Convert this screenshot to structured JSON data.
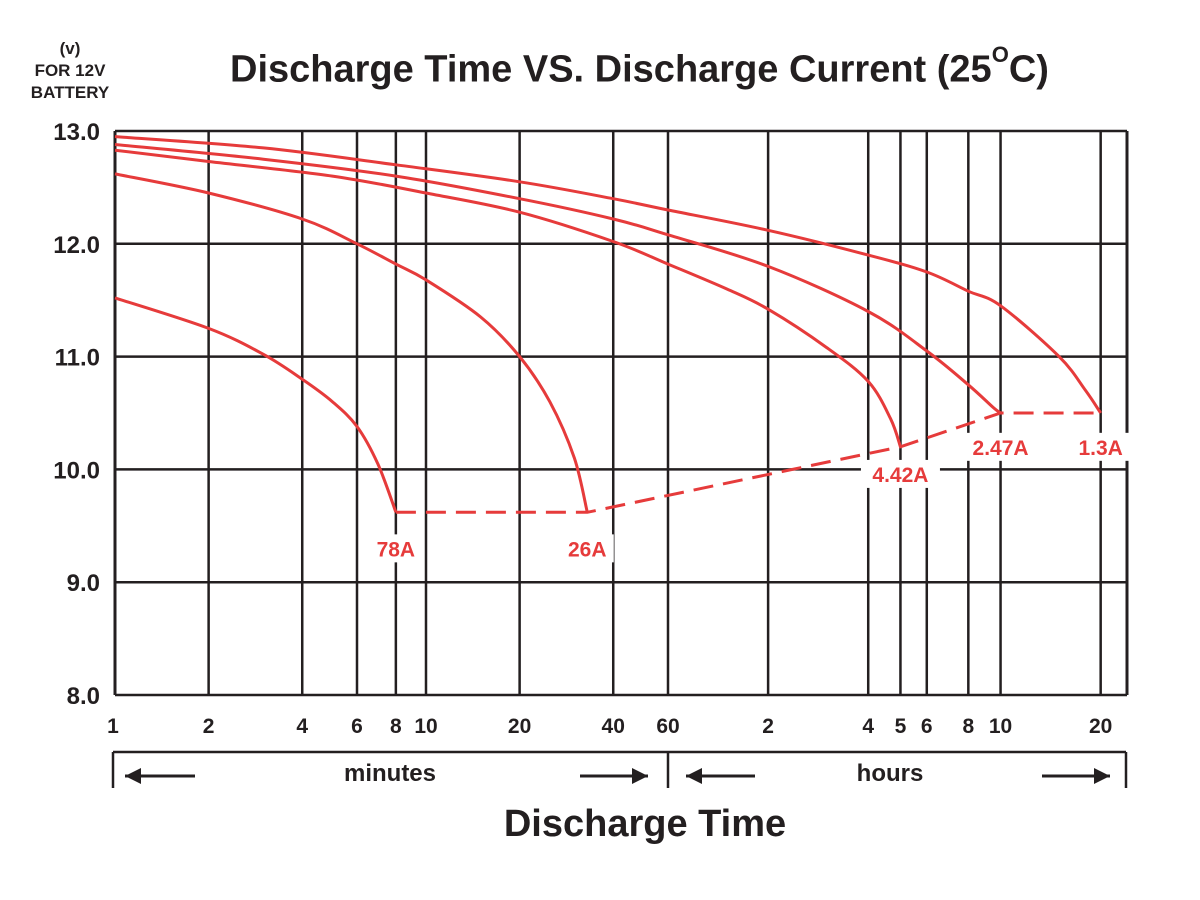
{
  "chart_data": {
    "type": "line",
    "title": "Discharge Time VS. Discharge Current (25",
    "title_sup": "O",
    "title_end": "C)",
    "ylabel_lines": [
      "(v)",
      "FOR 12V",
      "BATTERY"
    ],
    "xlabel": "Discharge Time",
    "x_segments": [
      {
        "label": "minutes",
        "range_min": [
          1,
          60
        ]
      },
      {
        "label": "hours",
        "range_min": [
          60,
          1200
        ]
      }
    ],
    "x_scale": "log",
    "x_ticks_min": [
      1,
      2,
      4,
      6,
      8,
      10,
      20,
      40,
      60,
      120,
      240,
      300,
      360,
      480,
      600,
      1200
    ],
    "x_tick_labels": [
      "1",
      "2",
      "4",
      "6",
      "8",
      "10",
      "20",
      "40",
      "60",
      "2",
      "4",
      "5",
      "6",
      "8",
      "10",
      "20"
    ],
    "y_ticks": [
      "8.0",
      "9.0",
      "10.0",
      "11.0",
      "12.0",
      "13.0"
    ],
    "ylim": [
      8.0,
      13.0
    ],
    "xlim_min": [
      1,
      1440
    ],
    "grid": true,
    "colors": {
      "series": "#e63b3b",
      "grid": "#231f20",
      "text": "#231f20"
    },
    "series": [
      {
        "name": "78A",
        "points": [
          [
            1,
            11.52
          ],
          [
            2,
            11.25
          ],
          [
            3,
            11.02
          ],
          [
            4,
            10.8
          ],
          [
            5,
            10.6
          ],
          [
            6,
            10.38
          ],
          [
            7,
            10.05
          ],
          [
            8,
            9.62
          ]
        ]
      },
      {
        "name": "26A",
        "points": [
          [
            1,
            12.62
          ],
          [
            2,
            12.45
          ],
          [
            4,
            12.22
          ],
          [
            6,
            12.0
          ],
          [
            8,
            11.82
          ],
          [
            10,
            11.68
          ],
          [
            15,
            11.35
          ],
          [
            20,
            11.0
          ],
          [
            25,
            10.6
          ],
          [
            30,
            10.1
          ],
          [
            33,
            9.62
          ]
        ]
      },
      {
        "name": "4.42A",
        "points": [
          [
            1,
            12.83
          ],
          [
            2,
            12.73
          ],
          [
            5,
            12.6
          ],
          [
            10,
            12.45
          ],
          [
            20,
            12.28
          ],
          [
            40,
            12.02
          ],
          [
            60,
            11.82
          ],
          [
            90,
            11.6
          ],
          [
            120,
            11.42
          ],
          [
            180,
            11.08
          ],
          [
            240,
            10.78
          ],
          [
            280,
            10.45
          ],
          [
            300,
            10.2
          ]
        ]
      },
      {
        "name": "2.47A",
        "points": [
          [
            1,
            12.88
          ],
          [
            3,
            12.75
          ],
          [
            8,
            12.6
          ],
          [
            20,
            12.4
          ],
          [
            40,
            12.22
          ],
          [
            60,
            12.08
          ],
          [
            120,
            11.8
          ],
          [
            240,
            11.4
          ],
          [
            360,
            11.05
          ],
          [
            480,
            10.75
          ],
          [
            570,
            10.55
          ],
          [
            600,
            10.5
          ]
        ]
      },
      {
        "name": "1.3A",
        "points": [
          [
            1,
            12.95
          ],
          [
            3,
            12.85
          ],
          [
            8,
            12.7
          ],
          [
            20,
            12.55
          ],
          [
            40,
            12.4
          ],
          [
            60,
            12.3
          ],
          [
            120,
            12.12
          ],
          [
            240,
            11.9
          ],
          [
            360,
            11.75
          ],
          [
            480,
            11.58
          ],
          [
            600,
            11.45
          ],
          [
            900,
            11.0
          ],
          [
            1080,
            10.7
          ],
          [
            1200,
            10.5
          ]
        ]
      }
    ],
    "endpoints_line": [
      [
        8,
        9.62
      ],
      [
        33,
        9.62
      ],
      [
        300,
        10.2
      ],
      [
        600,
        10.5
      ],
      [
        1200,
        10.5
      ]
    ],
    "point_labels": [
      {
        "text": "78A",
        "x": 8,
        "y": 9.3
      },
      {
        "text": "26A",
        "x": 33,
        "y": 9.3
      },
      {
        "text": "4.42A",
        "x": 300,
        "y": 9.96
      },
      {
        "text": "2.47A",
        "x": 600,
        "y": 10.2
      },
      {
        "text": "1.3A",
        "x": 1200,
        "y": 10.2
      }
    ]
  }
}
